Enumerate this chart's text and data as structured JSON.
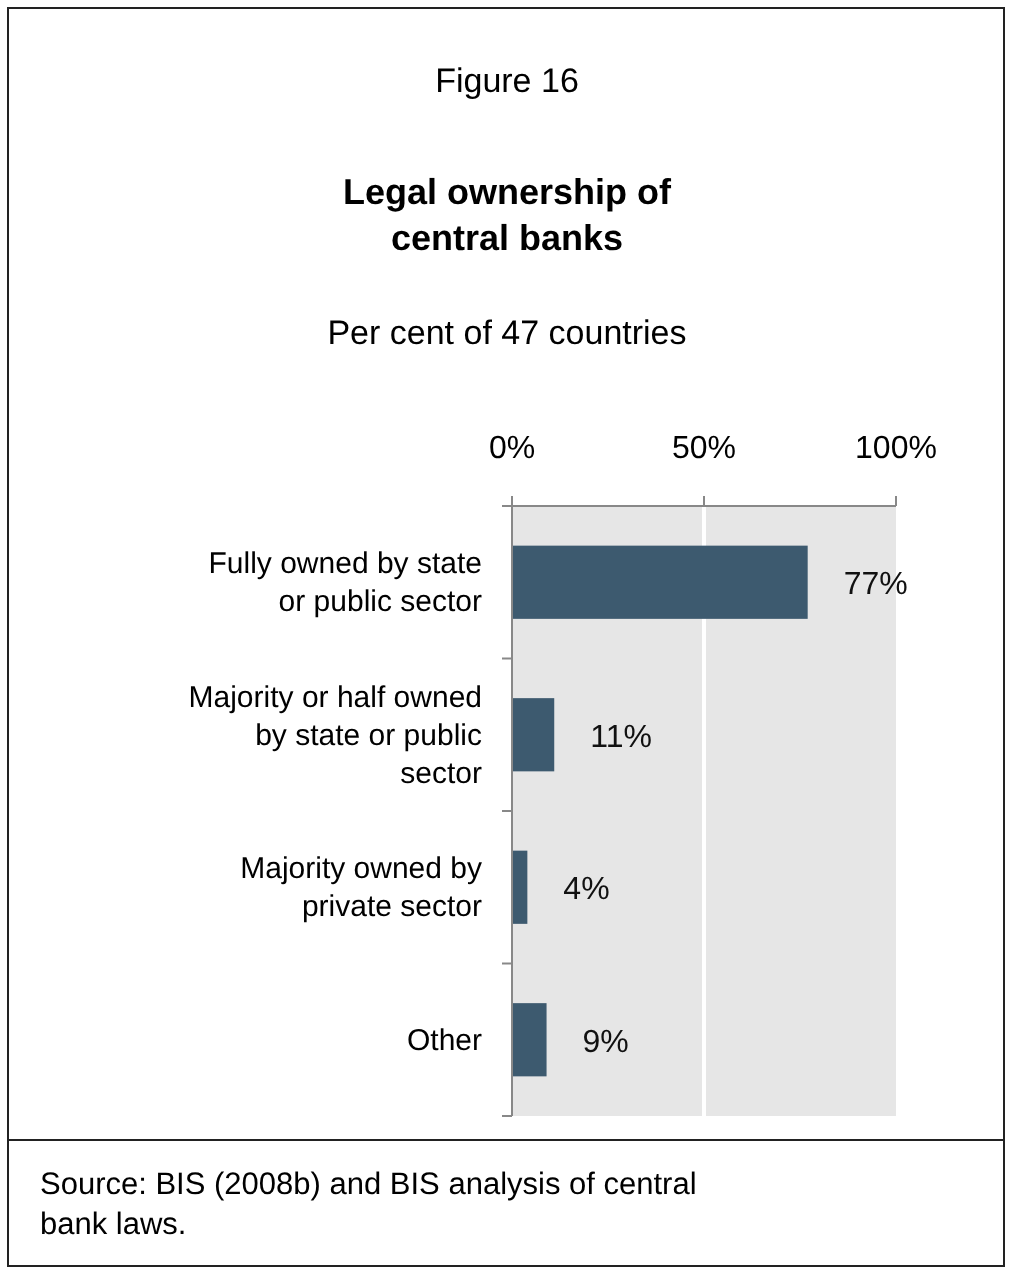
{
  "chart_data": {
    "type": "bar",
    "orientation": "horizontal",
    "title": "Figure 16",
    "subtitle": "Legal ownership of central banks",
    "xlabel": "Per cent of 47 countries",
    "categories": [
      "Fully owned by state or public sector",
      "Majority or half owned by state or public sector",
      "Majority owned by private sector",
      "Other"
    ],
    "values": [
      77,
      11,
      4,
      9
    ],
    "value_labels": [
      "77%",
      "11%",
      "4%",
      "9%"
    ],
    "color": "#3d5a6f",
    "xlim": [
      0,
      100
    ],
    "xticks": [
      {
        "value": 0,
        "label": "0%"
      },
      {
        "value": 50,
        "label": "50%"
      },
      {
        "value": 100,
        "label": "100%"
      }
    ],
    "grid": "x",
    "annotations": [
      "Source: BIS (2008b) and BIS analysis of central bank laws."
    ]
  }
}
